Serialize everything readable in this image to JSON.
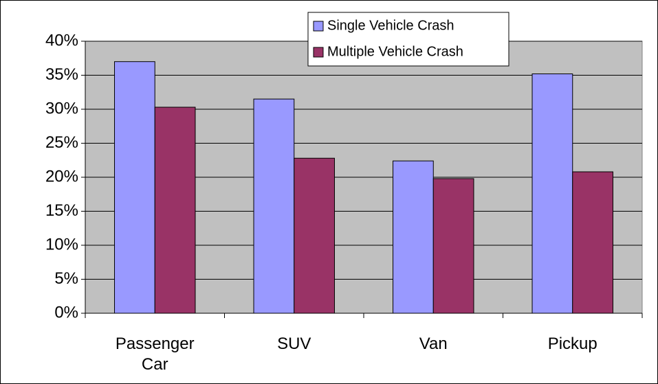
{
  "chart_data": {
    "type": "bar",
    "categories": [
      "Passenger Car",
      "SUV",
      "Van",
      "Pickup"
    ],
    "series": [
      {
        "name": "Single Vehicle Crash",
        "color": "#9999ff",
        "values": [
          37.0,
          31.5,
          22.4,
          35.2
        ]
      },
      {
        "name": "Multiple Vehicle Crash",
        "color": "#993366",
        "values": [
          30.3,
          22.8,
          19.8,
          20.8
        ]
      }
    ],
    "ylim": [
      0,
      40
    ],
    "yticks": [
      {
        "value": 0,
        "label": "0%"
      },
      {
        "value": 5,
        "label": "5%"
      },
      {
        "value": 10,
        "label": "10%"
      },
      {
        "value": 15,
        "label": "15%"
      },
      {
        "value": 20,
        "label": "20%"
      },
      {
        "value": 25,
        "label": "25%"
      },
      {
        "value": 30,
        "label": "30%"
      },
      {
        "value": 35,
        "label": "35%"
      },
      {
        "value": 40,
        "label": "40%"
      }
    ],
    "grid": true,
    "legend": "top",
    "plot_background": "#c0c0c0"
  }
}
